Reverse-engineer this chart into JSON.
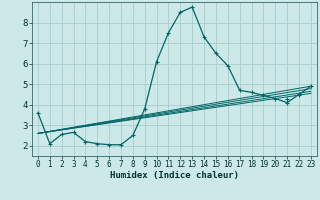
{
  "title": "",
  "xlabel": "Humidex (Indice chaleur)",
  "ylabel": "",
  "bg_color": "#cce8e8",
  "grid_color": "#aacccc",
  "line_color": "#006666",
  "xlim": [
    -0.5,
    23.5
  ],
  "ylim": [
    1.5,
    9.0
  ],
  "xticks": [
    0,
    1,
    2,
    3,
    4,
    5,
    6,
    7,
    8,
    9,
    10,
    11,
    12,
    13,
    14,
    15,
    16,
    17,
    18,
    19,
    20,
    21,
    22,
    23
  ],
  "yticks": [
    2,
    3,
    4,
    5,
    6,
    7,
    8
  ],
  "series": [
    {
      "x": [
        0,
        1,
        2,
        3,
        4,
        5,
        6,
        7,
        8,
        9,
        10,
        11,
        12,
        13,
        14,
        15,
        16,
        17,
        18,
        19,
        20,
        21,
        22,
        23
      ],
      "y": [
        3.6,
        2.1,
        2.55,
        2.65,
        2.2,
        2.1,
        2.05,
        2.05,
        2.5,
        3.8,
        6.1,
        7.5,
        8.5,
        8.75,
        7.3,
        6.5,
        5.9,
        4.7,
        4.6,
        4.45,
        4.3,
        4.1,
        4.5,
        4.9
      ],
      "marker": true
    },
    {
      "x": [
        0,
        23
      ],
      "y": [
        2.6,
        4.55
      ],
      "marker": false
    },
    {
      "x": [
        0,
        23
      ],
      "y": [
        2.6,
        4.65
      ],
      "marker": false
    },
    {
      "x": [
        0,
        23
      ],
      "y": [
        2.6,
        4.78
      ],
      "marker": false
    },
    {
      "x": [
        0,
        23
      ],
      "y": [
        2.6,
        4.9
      ],
      "marker": false
    }
  ]
}
